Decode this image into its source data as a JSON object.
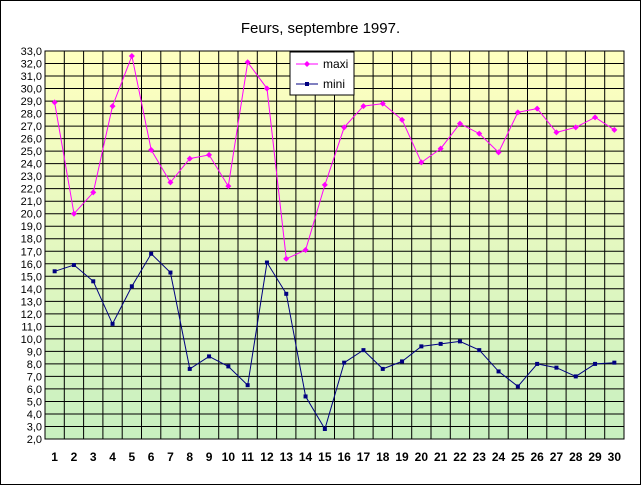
{
  "chart_data": {
    "type": "line",
    "title": "Feurs, septembre 1997.",
    "x": [
      1,
      2,
      3,
      4,
      5,
      6,
      7,
      8,
      9,
      10,
      11,
      12,
      13,
      14,
      15,
      16,
      17,
      18,
      19,
      20,
      21,
      22,
      23,
      24,
      25,
      26,
      27,
      28,
      29,
      30
    ],
    "x_tick_labels": [
      "1",
      "2",
      "3",
      "4",
      "5",
      "6",
      "7",
      "8",
      "9",
      "10",
      "11",
      "12",
      "13",
      "14",
      "15",
      "16",
      "17",
      "18",
      "19",
      "20",
      "21",
      "22",
      "23",
      "24",
      "25",
      "26",
      "27",
      "28",
      "29",
      "30"
    ],
    "ylim": [
      2,
      33
    ],
    "y_tick_labels": [
      "2,0",
      "3,0",
      "4,0",
      "5,0",
      "6,0",
      "7,0",
      "8,0",
      "9,0",
      "10,0",
      "11,0",
      "12,0",
      "13,0",
      "14,0",
      "15,0",
      "16,0",
      "17,0",
      "18,0",
      "19,0",
      "20,0",
      "21,0",
      "22,0",
      "23,0",
      "24,0",
      "25,0",
      "26,0",
      "27,0",
      "28,0",
      "29,0",
      "30,0",
      "31,0",
      "32,0",
      "33,0"
    ],
    "grid": true,
    "legend": "top-center",
    "series": [
      {
        "name": "maxi",
        "color": "#ff00ff",
        "values": [
          28.9,
          20.0,
          21.7,
          28.6,
          32.6,
          25.1,
          22.5,
          24.4,
          24.7,
          22.2,
          32.1,
          30.0,
          16.4,
          17.1,
          22.3,
          26.9,
          28.6,
          28.8,
          27.5,
          24.1,
          25.2,
          27.2,
          26.4,
          24.9,
          28.1,
          28.4,
          26.5,
          26.9,
          27.7,
          26.7
        ]
      },
      {
        "name": "mini",
        "color": "#000080",
        "values": [
          15.4,
          15.9,
          14.6,
          11.2,
          14.2,
          16.8,
          15.3,
          7.6,
          8.6,
          7.8,
          6.3,
          16.1,
          13.6,
          5.4,
          2.8,
          8.1,
          9.1,
          7.6,
          8.2,
          9.4,
          9.6,
          9.8,
          9.1,
          7.4,
          6.2,
          8.0,
          7.7,
          7.0,
          8.0,
          8.1
        ]
      }
    ]
  }
}
